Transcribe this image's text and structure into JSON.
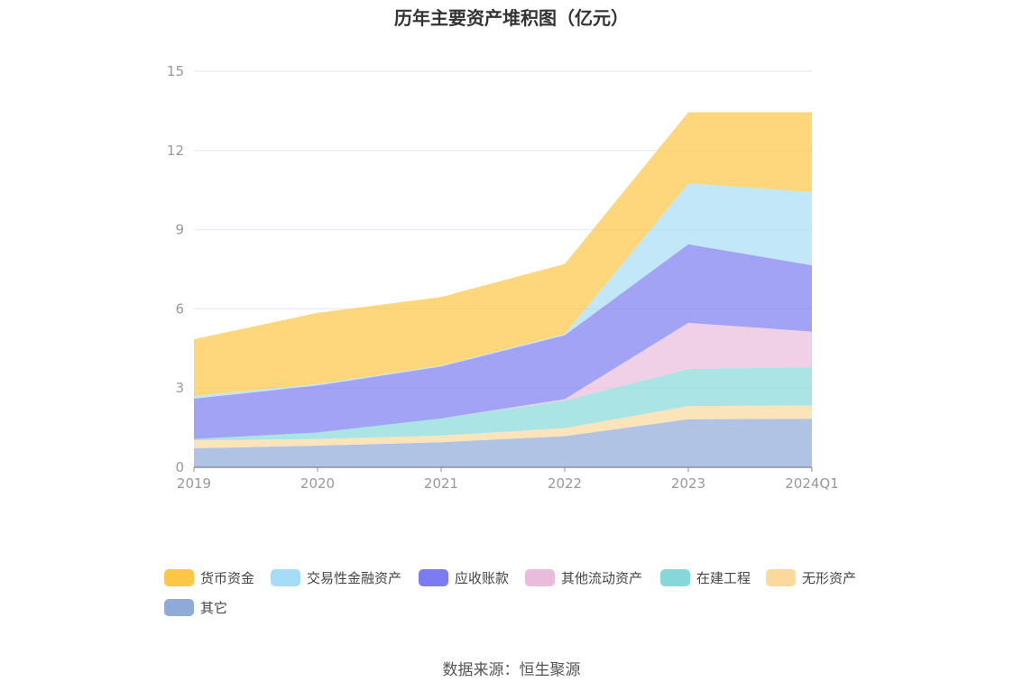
{
  "chart_data": {
    "type": "area",
    "title": "历年主要资产堆积图（亿元）",
    "categories": [
      "2019",
      "2020",
      "2021",
      "2022",
      "2023",
      "2024Q1"
    ],
    "ylim": [
      0,
      15
    ],
    "yticks": [
      "0",
      "3",
      "6",
      "9",
      "12",
      "15"
    ],
    "grid": true,
    "legend_position": "bottom",
    "stacked": true,
    "series": [
      {
        "name": "其它",
        "color": "#8eaad8",
        "values": [
          0.72,
          0.82,
          0.95,
          1.18,
          1.82,
          1.84
        ]
      },
      {
        "name": "无形资产",
        "color": "#fbd89c",
        "values": [
          0.3,
          0.25,
          0.25,
          0.3,
          0.5,
          0.5
        ]
      },
      {
        "name": "在建工程",
        "color": "#86d8d8",
        "values": [
          0.05,
          0.25,
          0.65,
          1.05,
          1.4,
          1.45
        ]
      },
      {
        "name": "其他流动资产",
        "color": "#e9bcdc",
        "values": [
          0.0,
          0.0,
          0.0,
          0.05,
          1.75,
          1.35
        ]
      },
      {
        "name": "应收账款",
        "color": "#7c7cf2",
        "values": [
          1.53,
          1.78,
          1.97,
          2.42,
          2.98,
          2.51
        ]
      },
      {
        "name": "交易性金融资产",
        "color": "#a6ddf6",
        "values": [
          0.1,
          0.05,
          0.03,
          0.05,
          2.3,
          2.78
        ]
      },
      {
        "name": "货币资金",
        "color": "#fdc645",
        "values": [
          2.15,
          2.7,
          2.6,
          2.65,
          2.7,
          3.02
        ]
      }
    ]
  },
  "legend_order": [
    "货币资金",
    "交易性金融资产",
    "应收账款",
    "其他流动资产",
    "在建工程",
    "无形资产",
    "其它"
  ],
  "source": "数据来源：恒生聚源"
}
